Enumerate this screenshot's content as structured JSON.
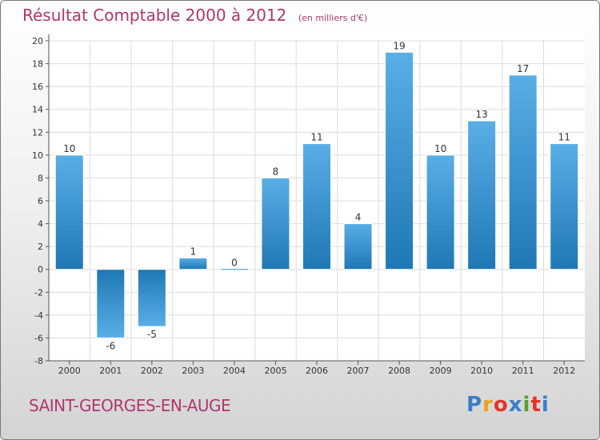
{
  "chart_data": {
    "type": "bar",
    "title": "Résultat Comptable 2000 à 2012",
    "subtitle": "(en milliers d'€)",
    "categories": [
      "2000",
      "2001",
      "2002",
      "2003",
      "2004",
      "2005",
      "2006",
      "2007",
      "2008",
      "2009",
      "2010",
      "2011",
      "2012"
    ],
    "values": [
      10,
      -6,
      -5,
      1,
      0,
      8,
      11,
      4,
      19,
      10,
      13,
      17,
      11
    ],
    "value_labels": [
      "10",
      "-6",
      "-5",
      "1",
      "0",
      "8",
      "11",
      "4",
      "19",
      "10",
      "13",
      "17",
      "11"
    ],
    "ylim": [
      -8,
      20
    ],
    "yticks": [
      -8,
      -6,
      -4,
      -2,
      0,
      2,
      4,
      6,
      8,
      10,
      12,
      14,
      16,
      18,
      20
    ],
    "ytick_labels": [
      "-8",
      "-6",
      "-4",
      "-2",
      "0",
      "2",
      "4",
      "6",
      "8",
      "10",
      "12",
      "14",
      "16",
      "18",
      "20"
    ],
    "grid": true,
    "xlabel": "",
    "ylabel": ""
  },
  "commune": "SAINT-GEORGES-EN-AUGE",
  "logo": {
    "letters": [
      "P",
      "r",
      "o",
      "x",
      "i",
      "t",
      "i"
    ],
    "colors": [
      "#3a7ec8",
      "#f0a020",
      "#e5332a",
      "#3a7ec8",
      "#5aa02c",
      "#e5332a",
      "#3a7ec8"
    ]
  },
  "colors": {
    "title": "#b0366e",
    "bar_top": "#5aaee6",
    "bar_bottom": "#1f78b4",
    "grid": "#dcdcdc",
    "axis": "#555555"
  }
}
